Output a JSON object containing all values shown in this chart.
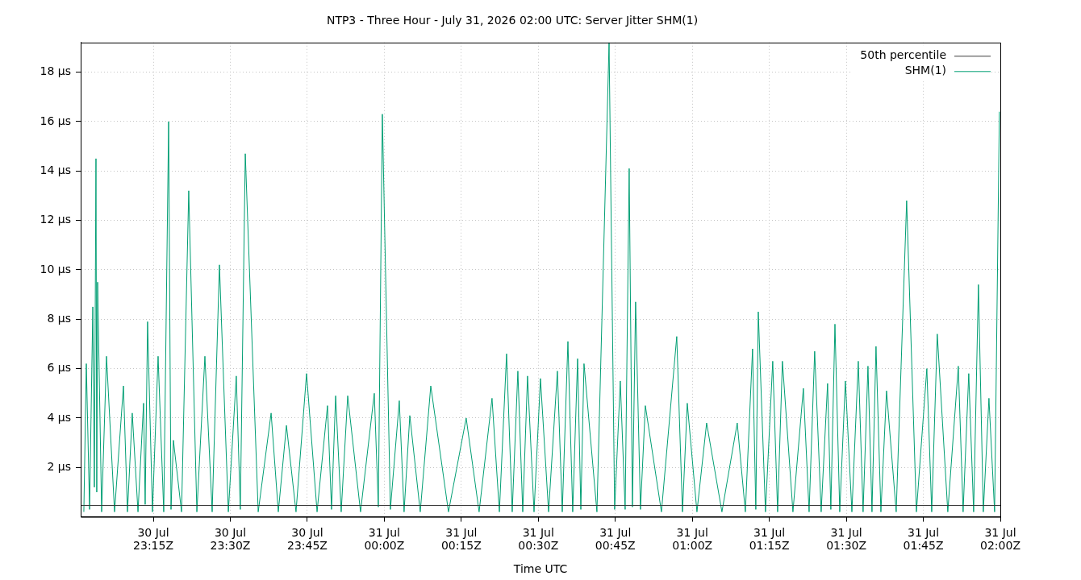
{
  "chart_data": {
    "type": "line",
    "title": "NTP3 - Three Hour - July 31, 2026 02:00 UTC: Server Jitter SHM(1)",
    "xlabel": "Time UTC",
    "xlim": [
      "2026-07-30T23:00:51",
      "2026-07-31T02:00"
    ],
    "xticks": [
      {
        "value": "2026-07-30T23:15",
        "label": "30 Jul\n23:15Z"
      },
      {
        "value": "2026-07-30T23:30",
        "label": "30 Jul\n23:30Z"
      },
      {
        "value": "2026-07-30T23:45",
        "label": "30 Jul\n23:45Z"
      },
      {
        "value": "2026-07-31T00:00",
        "label": "31 Jul\n00:00Z"
      },
      {
        "value": "2026-07-31T00:15",
        "label": "31 Jul\n00:15Z"
      },
      {
        "value": "2026-07-31T00:30",
        "label": "31 Jul\n00:30Z"
      },
      {
        "value": "2026-07-31T00:45",
        "label": "31 Jul\n00:45Z"
      },
      {
        "value": "2026-07-31T01:00",
        "label": "31 Jul\n01:00Z"
      },
      {
        "value": "2026-07-31T01:15",
        "label": "31 Jul\n01:15Z"
      },
      {
        "value": "2026-07-31T01:30",
        "label": "31 Jul\n01:30Z"
      },
      {
        "value": "2026-07-31T01:45",
        "label": "31 Jul\n01:45Z"
      },
      {
        "value": "2026-07-31T02:00",
        "label": "31 Jul\n02:00Z"
      }
    ],
    "ylim": [
      0,
      19.2
    ],
    "yticks": [
      {
        "value": 2,
        "label": "2 µs"
      },
      {
        "value": 4,
        "label": "4 µs"
      },
      {
        "value": 6,
        "label": "6 µs"
      },
      {
        "value": 8,
        "label": "8 µs"
      },
      {
        "value": 10,
        "label": "10 µs"
      },
      {
        "value": 12,
        "label": "12 µs"
      },
      {
        "value": 14,
        "label": "14 µs"
      },
      {
        "value": 16,
        "label": "16 µs"
      },
      {
        "value": 18,
        "label": "18 µs"
      }
    ],
    "grid": true,
    "legend": "top right",
    "marker": "none",
    "line_style": "solid",
    "series": [
      {
        "name": "50th percentile",
        "color": "#3c3c3c",
        "x": [
          "2026-07-30T23:00:51",
          "2026-07-31T02:00"
        ],
        "values": [
          0.46,
          0.46
        ]
      },
      {
        "name": "SHM(1)",
        "color": "#009e73",
        "x": [
          "2026-07-30T23:01:28",
          "2026-07-30T23:01:57",
          "2026-07-30T23:02:35",
          "2026-07-30T23:03:13",
          "2026-07-30T23:03:31",
          "2026-07-30T23:03:50",
          "2026-07-30T23:03:59",
          "2026-07-30T23:04:09",
          "2026-07-30T23:04:56",
          "2026-07-30T23:05:53",
          "2026-07-30T23:07:27",
          "2026-07-30T23:09:11",
          "2026-07-30T23:09:58",
          "2026-07-30T23:10:54",
          "2026-07-30T23:12:01",
          "2026-07-30T23:13:06",
          "2026-07-30T23:13:25",
          "2026-07-30T23:13:53",
          "2026-07-30T23:14:50",
          "2026-07-30T23:15:56",
          "2026-07-30T23:17:02",
          "2026-07-30T23:17:59",
          "2026-07-30T23:18:27",
          "2026-07-30T23:18:55",
          "2026-07-30T23:20:30",
          "2026-07-30T23:21:54",
          "2026-07-30T23:23:29",
          "2026-07-30T23:25:03",
          "2026-07-30T23:26:28",
          "2026-07-30T23:27:53",
          "2026-07-30T23:29:37",
          "2026-07-30T23:31:10",
          "2026-07-30T23:31:57",
          "2026-07-30T23:32:55",
          "2026-07-30T23:35:26",
          "2026-07-30T23:37:57",
          "2026-07-30T23:39:21",
          "2026-07-30T23:40:56",
          "2026-07-30T23:42:48",
          "2026-07-30T23:44:51",
          "2026-07-30T23:46:54",
          "2026-07-30T23:48:56",
          "2026-07-30T23:49:43",
          "2026-07-30T23:50:31",
          "2026-07-30T23:51:36",
          "2026-07-30T23:52:52",
          "2026-07-30T23:55:22",
          "2026-07-30T23:58:03",
          "2026-07-30T23:58:50",
          "2026-07-30T23:59:37",
          "2026-07-31T00:01:11",
          "2026-07-31T00:02:55",
          "2026-07-31T00:03:51",
          "2026-07-31T00:04:58",
          "2026-07-31T00:07:00",
          "2026-07-31T00:09:03",
          "2026-07-31T00:12:30",
          "2026-07-31T00:15:57",
          "2026-07-31T00:18:28",
          "2026-07-31T00:20:59",
          "2026-07-31T00:22:25",
          "2026-07-31T00:23:49",
          "2026-07-31T00:24:55",
          "2026-07-31T00:26:01",
          "2026-07-31T00:26:58",
          "2026-07-31T00:27:54",
          "2026-07-31T00:29:10",
          "2026-07-31T00:30:25",
          "2026-07-31T00:32:00",
          "2026-07-31T00:33:43",
          "2026-07-31T00:34:40",
          "2026-07-31T00:35:46",
          "2026-07-31T00:36:42",
          "2026-07-31T00:37:39",
          "2026-07-31T00:38:17",
          "2026-07-31T00:38:54",
          "2026-07-31T00:41:25",
          "2026-07-31T00:43:47",
          "2026-07-31T00:44:52",
          "2026-07-31T00:45:58",
          "2026-07-31T00:46:55",
          "2026-07-31T00:47:42",
          "2026-07-31T00:48:20",
          "2026-07-31T00:48:57",
          "2026-07-31T00:49:54",
          "2026-07-31T00:50:51",
          "2026-07-31T00:53:59",
          "2026-07-31T00:56:58",
          "2026-07-31T00:58:05",
          "2026-07-31T00:59:01",
          "2026-07-31T01:00:54",
          "2026-07-31T01:02:47",
          "2026-07-31T01:05:46",
          "2026-07-31T01:08:45",
          "2026-07-31T01:10:20",
          "2026-07-31T01:11:44",
          "2026-07-31T01:12:22",
          "2026-07-31T01:12:51",
          "2026-07-31T01:14:15",
          "2026-07-31T01:15:40",
          "2026-07-31T01:16:37",
          "2026-07-31T01:17:33",
          "2026-07-31T01:19:36",
          "2026-07-31T01:21:38",
          "2026-07-31T01:22:45",
          "2026-07-31T01:23:50",
          "2026-07-31T01:25:06",
          "2026-07-31T01:26:21",
          "2026-07-31T01:26:59",
          "2026-07-31T01:27:47",
          "2026-07-31T01:28:43",
          "2026-07-31T01:29:49",
          "2026-07-31T01:31:05",
          "2026-07-31T01:32:20",
          "2026-07-31T01:33:16",
          "2026-07-31T01:34:13",
          "2026-07-31T01:35:00",
          "2026-07-31T01:35:47",
          "2026-07-31T01:36:44",
          "2026-07-31T01:37:50",
          "2026-07-31T01:39:43",
          "2026-07-31T01:41:45",
          "2026-07-31T01:43:39",
          "2026-07-31T01:45:41",
          "2026-07-31T01:46:38",
          "2026-07-31T01:47:43",
          "2026-07-31T01:49:46",
          "2026-07-31T01:51:49",
          "2026-07-31T01:52:45",
          "2026-07-31T01:53:51",
          "2026-07-31T01:54:48",
          "2026-07-31T01:55:44",
          "2026-07-31T01:56:41",
          "2026-07-31T01:57:47",
          "2026-07-31T01:58:53",
          "2026-07-31T01:59:49"
        ],
        "values": [
          0.2,
          6.2,
          0.3,
          8.5,
          1.2,
          14.5,
          1.0,
          9.5,
          0.2,
          6.5,
          0.2,
          5.3,
          0.2,
          4.2,
          0.2,
          4.6,
          0.5,
          7.9,
          0.2,
          6.5,
          0.2,
          16.0,
          0.3,
          3.1,
          0.2,
          13.2,
          0.2,
          6.5,
          0.2,
          10.2,
          0.2,
          5.7,
          0.3,
          14.7,
          0.2,
          4.2,
          0.2,
          3.7,
          0.2,
          5.8,
          0.2,
          4.5,
          0.3,
          4.9,
          0.2,
          4.9,
          0.2,
          5.0,
          0.4,
          16.3,
          0.3,
          4.7,
          0.2,
          4.1,
          0.2,
          5.3,
          0.2,
          4.0,
          0.2,
          4.8,
          0.2,
          6.6,
          0.2,
          5.9,
          0.2,
          5.7,
          0.2,
          5.6,
          0.2,
          5.9,
          0.2,
          7.1,
          0.2,
          6.4,
          0.3,
          6.2,
          0.2,
          19.2,
          0.3,
          5.5,
          0.3,
          14.1,
          0.4,
          8.7,
          0.3,
          4.5,
          0.2,
          7.3,
          0.2,
          4.6,
          0.2,
          3.8,
          0.2,
          3.8,
          0.2,
          6.8,
          0.3,
          8.3,
          0.2,
          6.3,
          0.2,
          6.3,
          0.2,
          5.2,
          0.2,
          6.7,
          0.2,
          5.4,
          0.3,
          7.8,
          0.2,
          5.5,
          0.2,
          6.3,
          0.2,
          6.1,
          0.2,
          6.9,
          0.2,
          5.1,
          0.2,
          12.8,
          0.2,
          6.0,
          0.2,
          7.4,
          0.2,
          6.1,
          0.2,
          5.8,
          0.2,
          9.4,
          0.2,
          4.8,
          0.2,
          16.4
        ]
      }
    ]
  }
}
